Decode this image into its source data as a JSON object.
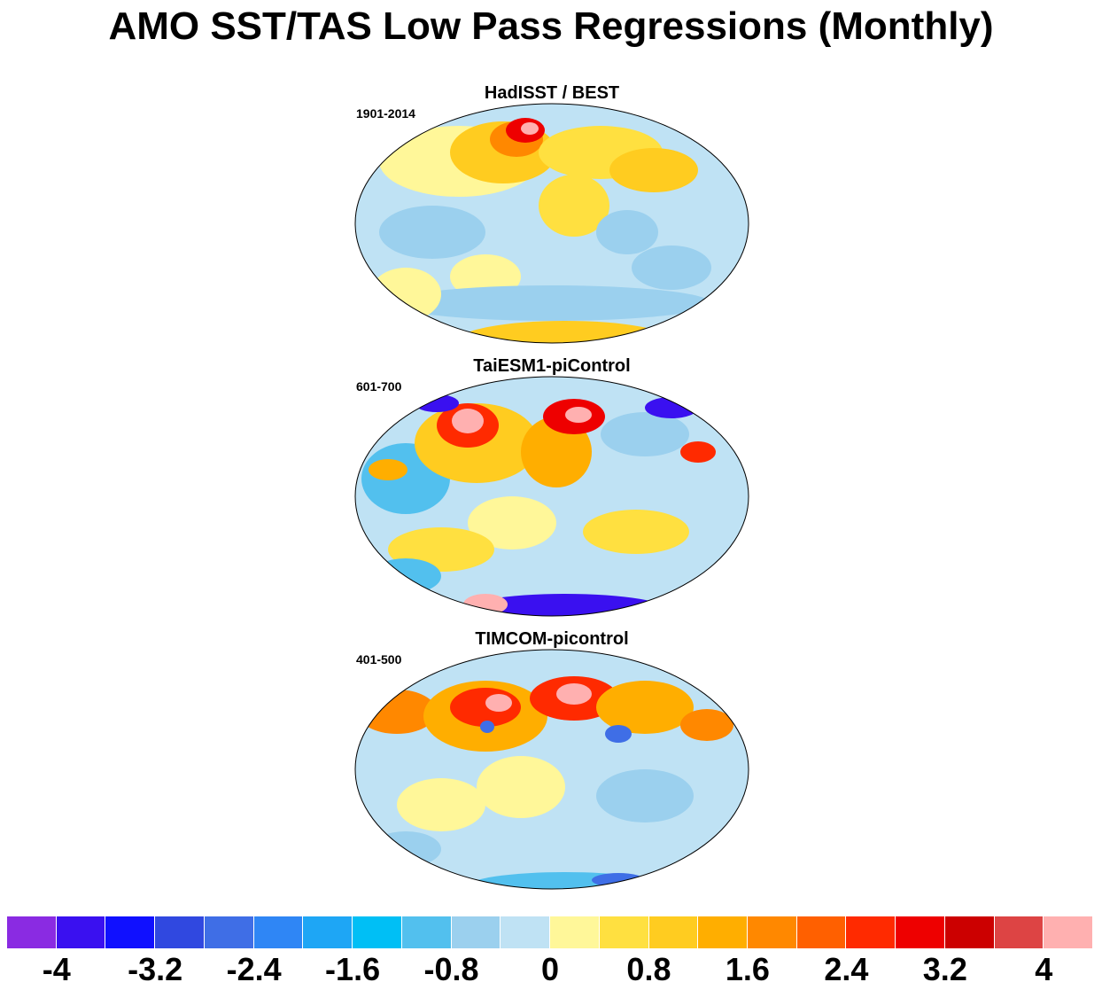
{
  "title": "AMO SST/TAS Low Pass Regressions (Monthly)",
  "panels": [
    {
      "title": "HadISST / BEST",
      "period": "1901-2014"
    },
    {
      "title": "TaiESM1-piControl",
      "period": "601-700"
    },
    {
      "title": "TIMCOM-picontrol",
      "period": "401-500"
    }
  ],
  "colorbar": {
    "colors": [
      "#8a2be2",
      "#3a10f0",
      "#1010ff",
      "#3048e0",
      "#3f6ee6",
      "#2f86f5",
      "#1ea6f5",
      "#00bff5",
      "#52c0ee",
      "#9bd0ee",
      "#bfe2f4",
      "#fff799",
      "#ffe040",
      "#ffcc20",
      "#ffae00",
      "#ff8800",
      "#ff6000",
      "#ff2a00",
      "#ee0000",
      "#cc0000",
      "#dd4444",
      "#ffb0b0"
    ],
    "labels": [
      "-4",
      "-3.2",
      "-2.4",
      "-1.6",
      "-0.8",
      "0",
      "0.8",
      "1.6",
      "2.4",
      "3.2",
      "4"
    ]
  },
  "map_colors": {
    "neutral_blue": "#bfe2f4",
    "light_blue": "#9bd0ee",
    "blue": "#52c0ee",
    "deep_blue": "#3f6ee6",
    "violet": "#3a10f0",
    "pale_yellow": "#fff799",
    "yellow": "#ffe040",
    "gold": "#ffcc20",
    "orange": "#ffae00",
    "dark_orange": "#ff8800",
    "red": "#ee0000",
    "pink": "#ffb0b0"
  }
}
